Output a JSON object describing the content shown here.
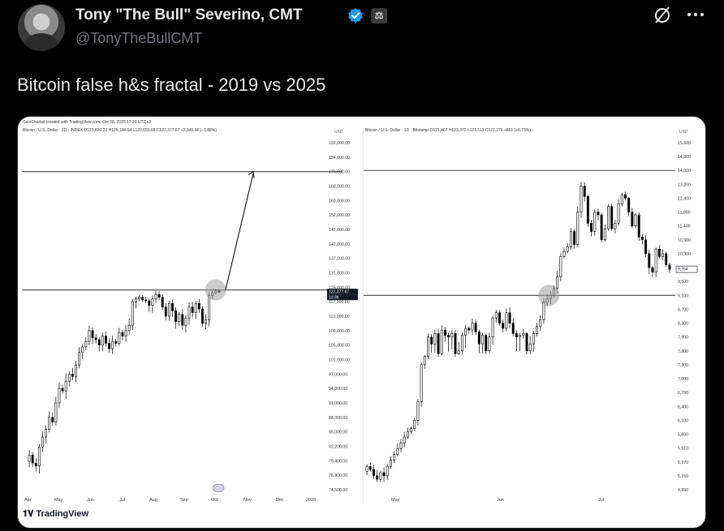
{
  "author": {
    "name": "Tony \"The Bull\" Severino, CMT",
    "handle": "@TonyTheBullCMT",
    "affiliate_badge": "⚖"
  },
  "tweet": {
    "text": "Bitcoin false h&s fractal - 2019 vs 2025"
  },
  "colors": {
    "background": "#000000",
    "verified": "#1d9bf0",
    "muted": "#71767b"
  },
  "icons": {
    "grok": "grok-icon",
    "more": "more-options-icon",
    "verified": "verified-badge-icon"
  },
  "media": {
    "credit": "CoinChartist created with TradingView.com, Oct 08, 2025 17:20 UTC+2",
    "watermark": "TradingView",
    "chart_data": [
      {
        "type": "candlestick",
        "header": "Bitcoin / U.S. Dollar · 3D · INDEX  O123,820.23  H125,184.64  L120,659.65  C122,377.67  −2,345.96 (−1.88%)",
        "axis_unit": "USD",
        "y_ticks": [
          "192,000.00",
          "184,000.00",
          "176,000.00",
          "168,000.00",
          "160,000.00",
          "152,000.00",
          "147,000.00",
          "142,000.00",
          "137,000.00",
          "131,000.00",
          "125,000.00",
          "117,000.00",
          "113,000.00",
          "109,000.00",
          "105,000.00",
          "101,000.00",
          "97,000.00",
          "94,000.00",
          "91,000.00",
          "88,000.00",
          "85,000.00",
          "82,200.00",
          "79,400.00",
          "76,900.00",
          "74,500.00"
        ],
        "x_ticks": [
          "Apr",
          "May",
          "Jun",
          "Jul",
          "Aug",
          "Sep",
          "Oct",
          "Nov",
          "Dec",
          "2026"
        ],
        "last_price_label": "122,377.67",
        "countdown_label": "1d 8h",
        "levels": [
          176000,
          123500
        ],
        "projection": {
          "from": 123500,
          "to": 176000
        },
        "closes": [
          80500,
          79000,
          78500,
          82000,
          84000,
          85500,
          88000,
          87000,
          91000,
          94000,
          93500,
          95500,
          97000,
          96500,
          99500,
          103000,
          104500,
          106000,
          109000,
          107000,
          106500,
          105000,
          107500,
          105500,
          104000,
          106000,
          105500,
          108500,
          107500,
          109000,
          110500,
          117000,
          118500,
          119500,
          118000,
          117500,
          116000,
          118500,
          121000,
          119500,
          115500,
          113000,
          116500,
          114500,
          111500,
          113500,
          110500,
          112500,
          115500,
          114000,
          116500,
          115000,
          111000,
          112000,
          120500,
          122000,
          123000,
          122377
        ]
      },
      {
        "type": "candlestick",
        "header": "Bitcoin / U.S. Dollar · 1D · Bitstamp  O121,407  H123,372  L121,113  C122,276  +881 (+0.73%)",
        "axis_unit": "USD",
        "y_ticks": [
          "15,600",
          "14,800",
          "14,000",
          "13,200",
          "12,400",
          "11,900",
          "11,400",
          "10,900",
          "10,300",
          "9,800",
          "9,500",
          "9,100",
          "8,700",
          "8,300",
          "7,900",
          "7,800",
          "7,300",
          "7,000",
          "6,700",
          "6,400",
          "6,100",
          "5,850",
          "5,610",
          "5,370",
          "5,150",
          "4,950"
        ],
        "x_ticks": [
          "May",
          "Jun",
          "Jul"
        ],
        "last_price_label": "9,764",
        "levels": [
          14000,
          9100
        ],
        "closes": [
          5300,
          5250,
          5150,
          5100,
          5200,
          5150,
          5300,
          5400,
          5500,
          5600,
          5700,
          5800,
          5900,
          5950,
          6100,
          6500,
          7300,
          7600,
          7900,
          7850,
          8000,
          7700,
          8100,
          7950,
          7900,
          8000,
          7700,
          7800,
          7950,
          8150,
          8100,
          8300,
          8050,
          7850,
          7950,
          7800,
          7900,
          8450,
          8600,
          8300,
          8150,
          8600,
          8300,
          8000,
          7900,
          7950,
          8000,
          7800,
          7850,
          8000,
          8200,
          8400,
          8900,
          9000,
          9100,
          9300,
          9600,
          10200,
          10400,
          10600,
          11200,
          10700,
          11900,
          13100,
          12500,
          11500,
          11200,
          11900,
          11800,
          10900,
          11300,
          12100,
          11300,
          11500,
          12200,
          12600,
          12400,
          11900,
          11400,
          11800,
          11000,
          10900,
          10300,
          9800,
          9700,
          10500,
          10200,
          10300,
          9900,
          9764
        ]
      }
    ]
  }
}
